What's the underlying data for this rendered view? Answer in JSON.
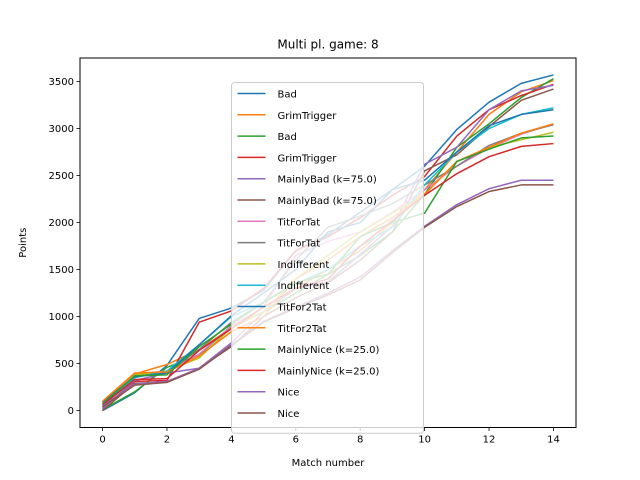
{
  "chart_data": {
    "type": "line",
    "title": "Multi pl. game: 8",
    "xlabel": "Match number",
    "ylabel": "Points",
    "xlim": [
      -0.7,
      14.7
    ],
    "ylim": [
      -180,
      3750
    ],
    "xticks": [
      0,
      2,
      4,
      6,
      8,
      10,
      12,
      14
    ],
    "yticks": [
      0,
      500,
      1000,
      1500,
      2000,
      2500,
      3000,
      3500
    ],
    "grid": false,
    "legend_position": "center",
    "x": [
      0,
      1,
      2,
      3,
      4,
      5,
      6,
      7,
      8,
      9,
      10,
      11,
      12,
      13,
      14
    ],
    "series": [
      {
        "name": "Bad",
        "color": "#1f77b4",
        "values": [
          0,
          190,
          480,
          980,
          1090,
          1280,
          1700,
          1870,
          2110,
          2350,
          2600,
          2990,
          3280,
          3480,
          3570
        ]
      },
      {
        "name": "GrimTrigger",
        "color": "#ff7f0e",
        "values": [
          80,
          390,
          490,
          650,
          880,
          1100,
          1300,
          1500,
          1700,
          2000,
          2350,
          2750,
          3150,
          3390,
          3510
        ]
      },
      {
        "name": "Bad",
        "color": "#2ca02c",
        "values": [
          10,
          200,
          460,
          590,
          900,
          1050,
          1250,
          1450,
          1650,
          1900,
          2300,
          2800,
          3050,
          3330,
          3530
        ]
      },
      {
        "name": "GrimTrigger",
        "color": "#d62728",
        "values": [
          30,
          310,
          320,
          940,
          1060,
          1300,
          1700,
          1850,
          2050,
          2290,
          2490,
          2920,
          3200,
          3350,
          3470
        ]
      },
      {
        "name": "MainlyBad (k=75.0)",
        "color": "#9467bd",
        "values": [
          20,
          320,
          400,
          450,
          720,
          1050,
          1300,
          1370,
          1660,
          1960,
          2620,
          2800,
          3200,
          3400,
          3460
        ]
      },
      {
        "name": "MainlyBad (k=75.0)",
        "color": "#8c564b",
        "values": [
          0,
          290,
          300,
          450,
          680,
          1000,
          1200,
          1360,
          1600,
          1900,
          2550,
          2720,
          3020,
          3300,
          3420
        ]
      },
      {
        "name": "TitForTat",
        "color": "#e377c2",
        "values": [
          60,
          390,
          420,
          600,
          900,
          1100,
          1650,
          1800,
          1900,
          2110,
          2350,
          2600,
          2790,
          2940,
          3050
        ]
      },
      {
        "name": "TitForTat",
        "color": "#7f7f7f",
        "values": [
          40,
          370,
          410,
          650,
          940,
          1150,
          1600,
          1950,
          2070,
          2200,
          2400,
          2600,
          2820,
          2950,
          3040
        ]
      },
      {
        "name": "Indifferent",
        "color": "#bcbd22",
        "values": [
          50,
          380,
          420,
          560,
          880,
          1050,
          1400,
          1650,
          1900,
          2100,
          2300,
          2650,
          2800,
          2880,
          2960
        ]
      },
      {
        "name": "Indifferent",
        "color": "#17becf",
        "values": [
          60,
          350,
          420,
          700,
          1000,
          1150,
          1350,
          1500,
          1750,
          1950,
          2400,
          2750,
          3000,
          3150,
          3220
        ]
      },
      {
        "name": "TitFor2Tat",
        "color": "#1f77b4",
        "values": [
          90,
          360,
          400,
          700,
          1010,
          1250,
          1500,
          1900,
          2000,
          2350,
          2450,
          2750,
          3030,
          3150,
          3200
        ]
      },
      {
        "name": "TitFor2Tat",
        "color": "#ff7f0e",
        "values": [
          100,
          400,
          410,
          580,
          840,
          1000,
          1400,
          1600,
          1850,
          2050,
          2300,
          2650,
          2800,
          2950,
          3050
        ]
      },
      {
        "name": "MainlyNice (k=25.0)",
        "color": "#2ca02c",
        "values": [
          70,
          370,
          380,
          680,
          920,
          1150,
          1360,
          1450,
          1850,
          2000,
          2100,
          2650,
          2780,
          2900,
          2920
        ]
      },
      {
        "name": "MainlyNice (k=25.0)",
        "color": "#d62728",
        "values": [
          60,
          330,
          340,
          640,
          870,
          1100,
          1300,
          1400,
          1750,
          2020,
          2290,
          2520,
          2700,
          2810,
          2840
        ]
      },
      {
        "name": "Nice",
        "color": "#9467bd",
        "values": [
          50,
          280,
          310,
          450,
          700,
          950,
          1100,
          1250,
          1420,
          1700,
          1960,
          2190,
          2360,
          2450,
          2450
        ]
      },
      {
        "name": "Nice",
        "color": "#8c564b",
        "values": [
          40,
          270,
          300,
          440,
          690,
          940,
          1090,
          1230,
          1390,
          1680,
          1950,
          2170,
          2330,
          2400,
          2400
        ]
      }
    ]
  }
}
